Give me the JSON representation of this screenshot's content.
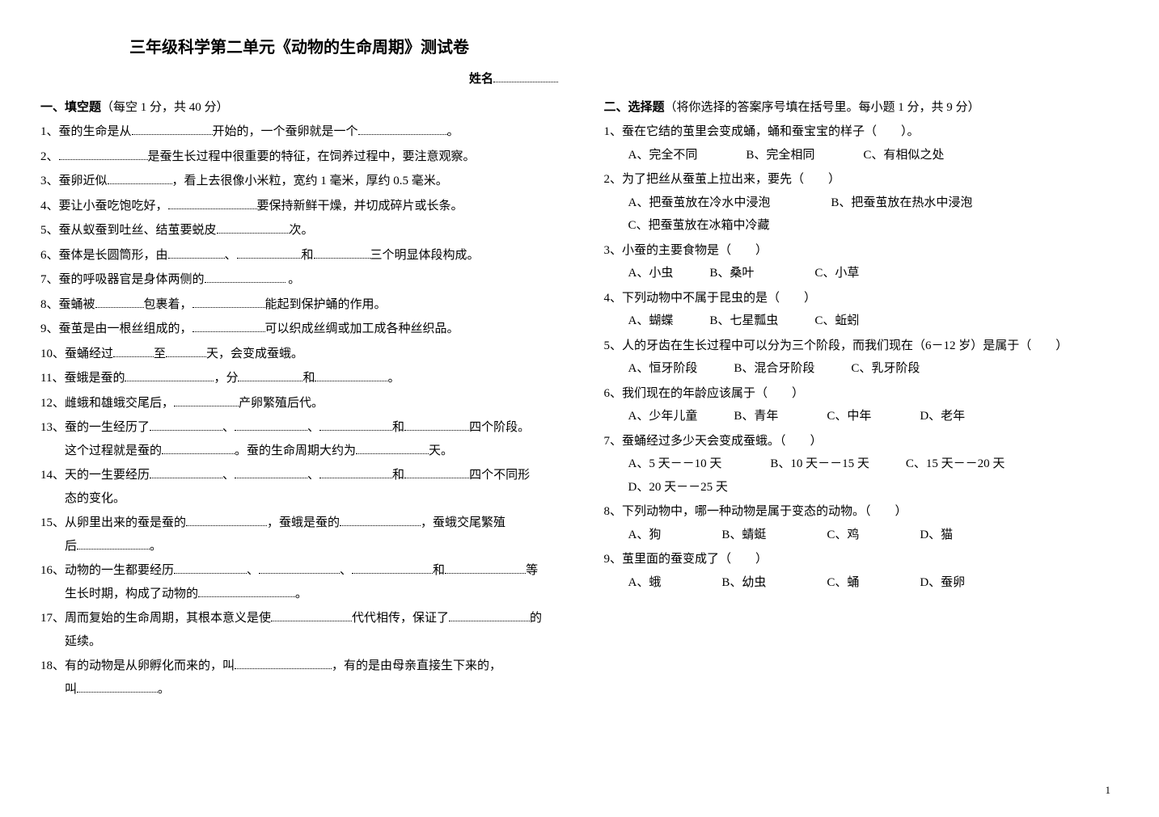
{
  "title": "三年级科学第二单元《动物的生命周期》测试卷",
  "name_label": "姓名",
  "page_num": "1",
  "left": {
    "section_head": "一、填空题",
    "section_note": "（每空 1 分，共 40 分）",
    "q1_a": "1、蚕的生命是从",
    "q1_b": "开始的，一个蚕卵就是一个",
    "q1_c": "。",
    "q2_a": "2、",
    "q2_b": "是蚕生长过程中很重要的特征，在饲养过程中，要注意观察。",
    "q3_a": "3、蚕卵近似",
    "q3_b": "，看上去很像小米粒，宽约 1 毫米，厚约 0.5 毫米。",
    "q4_a": "4、要让小蚕吃饱吃好，",
    "q4_b": "要保持新鲜干燥，并切成碎片或长条。",
    "q5_a": "5、蚕从蚁蚕到吐丝、结茧要蜕皮",
    "q5_b": "次。",
    "q6_a": "6、蚕体是长圆筒形，由",
    "q6_b": "、",
    "q6_c": "和",
    "q6_d": "三个明显体段构成。",
    "q7_a": "7、蚕的呼吸器官是身体两侧的",
    "q7_b": " 。",
    "q8_a": "8、蚕蛹被",
    "q8_b": "包裹着，",
    "q8_c": "能起到保护蛹的作用。",
    "q9_a": "9、蚕茧是由一根丝组成的，",
    "q9_b": "可以织成丝绸或加工成各种丝织品。",
    "q10_a": "10、蚕蛹经过",
    "q10_b": "至",
    "q10_c": "天，会变成蚕蛾。",
    "q11_a": "11、蚕蛾是蚕的",
    "q11_b": "，分",
    "q11_c": "和",
    "q11_d": "。",
    "q12_a": "12、雌蛾和雄蛾交尾后，",
    "q12_b": "产卵繁殖后代。",
    "q13_a": "13、蚕的一生经历了",
    "q13_b": "、",
    "q13_c": "、",
    "q13_d": "和",
    "q13_e": "四个阶段。",
    "q13_f": "这个过程就是蚕的",
    "q13_g": "。蚕的生命周期大约为",
    "q13_h": "天。",
    "q14_a": "14、天的一生要经历",
    "q14_b": "、",
    "q14_c": "、",
    "q14_d": "和",
    "q14_e": "四个不同形",
    "q14_f": "态的变化。",
    "q15_a": "15、从卵里出来的蚕是蚕的",
    "q15_b": "，蚕蛾是蚕的",
    "q15_c": "，蚕蛾交尾繁殖",
    "q15_d": "后",
    "q15_e": "。",
    "q16_a": "16、动物的一生都要经历",
    "q16_b": "、",
    "q16_c": "、",
    "q16_d": "和",
    "q16_e": "等",
    "q16_f": "生长时期，构成了动物的",
    "q16_g": "。",
    "q17_a": "17、周而复始的生命周期，其根本意义是使",
    "q17_b": "代代相传，保证了",
    "q17_c": "的",
    "q17_d": "延续。",
    "q18_a": "18、有的动物是从卵孵化而来的，叫",
    "q18_b": "，有的是由母亲直接生下来的，",
    "q18_c": "叫",
    "q18_d": "。"
  },
  "right": {
    "section_head": "二、选择题",
    "section_note": "（将你选择的答案序号填在括号里。每小题 1 分，共 9 分）",
    "q1": "1、蚕在它结的茧里会变成蛹，蛹和蚕宝宝的样子（　　）。",
    "q1_opts": "A、完全不同　　　　B、完全相同　　　　C、有相似之处",
    "q2": "2、为了把丝从蚕茧上拉出来，要先（　　）",
    "q2_opts1": "A、把蚕茧放在冷水中浸泡　　　　　B、把蚕茧放在热水中浸泡",
    "q2_opts2": "C、把蚕茧放在冰箱中冷藏",
    "q3": "3、小蚕的主要食物是（　　）",
    "q3_opts": "A、小虫　　　B、桑叶　　　　　C、小草",
    "q4": "4、下列动物中不属于昆虫的是（　　）",
    "q4_opts": "A、蝴蝶　　　B、七星瓢虫　　　C、蚯蚓",
    "q5": "5、人的牙齿在生长过程中可以分为三个阶段，而我们现在（6－12 岁）是属于（　　）",
    "q5_opts": "A、恒牙阶段　　　B、混合牙阶段　　　C、乳牙阶段",
    "q6": "6、我们现在的年龄应该属于（　　）",
    "q6_opts": "A、少年儿童　　　B、青年　　　　C、中年　　　　D、老年",
    "q7": "7、蚕蛹经过多少天会变成蚕蛾。（　　）",
    "q7_opts1": "A、5 天－－10 天　　　　B、10 天－－15 天　　　C、15 天－－20 天",
    "q7_opts2": "D、20 天－－25 天",
    "q8": "8、下列动物中，哪一种动物是属于变态的动物。（　　）",
    "q8_opts": "A、狗　　　　　B、蜻蜓　　　　　C、鸡　　　　　D、猫",
    "q9": "9、茧里面的蚕变成了（　　）",
    "q9_opts": "A、蛾　　　　　B、幼虫　　　　　C、蛹　　　　　D、蚕卵"
  }
}
